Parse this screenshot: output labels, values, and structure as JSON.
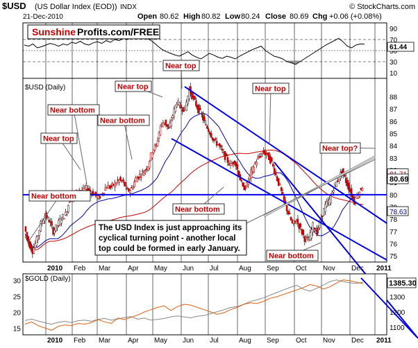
{
  "header": {
    "symbol": "$USD",
    "name": "(US Dollar Index (EOD))",
    "exchange": "INDX",
    "date": "21-Dec-2010",
    "open_label": "Open",
    "open": "80.62",
    "high_label": "High",
    "high": "80.82",
    "low_label": "Low",
    "low": "80.24",
    "close_label": "Close",
    "close": "80.69",
    "chg_label": "Chg",
    "chg": "+0.06 (+0.08%)",
    "credit": "© StockCharts.com"
  },
  "brand": {
    "part1": "Sunshine",
    "part2": "Profits.com/FREE"
  },
  "colors": {
    "price": "#cc0000",
    "ma_long": "#cc0000",
    "ma_short": "#0000aa",
    "trend": "#0000ee",
    "annotation": "#cc0000",
    "gold": "#e06010",
    "silver": "#888888",
    "rsi_shade": "#777777"
  },
  "chart_data": [
    {
      "type": "line",
      "panel": "rsi",
      "y_ticks": [
        "90",
        "70",
        "50",
        "30",
        "10"
      ],
      "ylim": [
        0,
        100
      ],
      "last_value": "61.44",
      "reference_lines": [
        70,
        50,
        30
      ],
      "values": [
        60,
        58,
        62,
        55,
        57,
        60,
        63,
        61,
        58,
        62,
        60,
        65,
        63,
        67,
        62,
        60,
        64,
        66,
        63,
        68,
        65,
        70,
        68,
        72,
        70,
        75,
        73,
        78,
        74,
        70,
        65,
        58,
        52,
        48,
        45,
        42,
        40,
        44,
        48,
        42,
        38,
        35,
        40,
        45,
        42,
        38,
        36,
        40,
        38,
        35,
        40,
        44,
        48,
        52,
        55,
        58,
        50,
        45,
        40,
        38,
        35,
        30,
        28,
        25,
        30,
        35,
        40,
        45,
        50,
        55,
        60,
        64,
        68,
        72,
        66,
        58,
        55,
        60,
        62,
        61.44
      ]
    },
    {
      "type": "candlestick",
      "panel": "price",
      "title": "$USD (Daily)",
      "x_ticks": [
        "2010",
        "Feb",
        "Mar",
        "Apr",
        "May",
        "Jun",
        "Jul",
        "Aug",
        "Sep",
        "Oct",
        "Nov",
        "Dec",
        "2011"
      ],
      "y_ticks": [
        "88",
        "87",
        "86",
        "85",
        "84",
        "83",
        "82",
        "81",
        "80",
        "79",
        "78",
        "77",
        "76",
        "75"
      ],
      "ylim": [
        74.5,
        89.5
      ],
      "close_series": [
        77.4,
        76.1,
        75.4,
        76.3,
        77.6,
        78.3,
        77.9,
        77.0,
        77.5,
        78.1,
        78.4,
        79.6,
        79.8,
        80.4,
        80.2,
        80.5,
        80.3,
        80.0,
        79.7,
        80.2,
        80.7,
        80.6,
        80.9,
        81.2,
        81.0,
        80.3,
        80.5,
        81.3,
        81.6,
        81.9,
        82.4,
        83.6,
        84.0,
        85.6,
        86.0,
        85.3,
        86.5,
        87.6,
        87.1,
        87.0,
        88.6,
        87.8,
        87.1,
        86.5,
        85.6,
        85.1,
        84.4,
        84.1,
        83.5,
        82.9,
        82.4,
        82.8,
        81.7,
        80.5,
        80.8,
        81.8,
        82.6,
        83.1,
        83.5,
        83.2,
        82.6,
        81.6,
        80.6,
        79.4,
        78.5,
        77.6,
        77.9,
        77.2,
        76.4,
        76.3,
        77.5,
        76.9,
        78.1,
        79.1,
        79.5,
        80.6,
        81.2,
        81.9,
        81.1,
        80.3,
        79.4,
        80.1,
        80.69
      ],
      "reference_lines": [
        {
          "label": "81.71",
          "value": 81.71
        },
        {
          "label": "78.63",
          "value": 78.63
        }
      ],
      "last_value": "80.69",
      "horizontal_level": 80.0,
      "annotations": [
        {
          "text": "Near bottom",
          "x_date": "2010-01-06"
        },
        {
          "text": "Near top",
          "x_date": "2010-02-04"
        },
        {
          "text": "Near bottom",
          "x_date": "2010-02-16"
        },
        {
          "text": "Near bottom",
          "x_date": "2010-03-25"
        },
        {
          "text": "Near top",
          "x_date": "2010-05-20"
        },
        {
          "text": "Near top",
          "x_date": "2010-06-07"
        },
        {
          "text": "Near top",
          "x_date": "2010-09-01"
        },
        {
          "text": "Near bottom",
          "x_date": "2010-08-10"
        },
        {
          "text": "Near bottom",
          "x_date": "2010-11-04"
        },
        {
          "text": "Near top?",
          "x_date": "2010-12-20"
        }
      ],
      "commentary": "The USD Index is just approaching its cyclical turning point - another local top could be formed in early January."
    },
    {
      "type": "line",
      "panel": "gold",
      "title": "$GOLD (Daily)",
      "x_ticks": [
        "2010",
        "Feb",
        "Mar",
        "Apr",
        "May",
        "Jun",
        "Jul",
        "Aug",
        "Sep",
        "Oct",
        "Nov",
        "Dec",
        "2011"
      ],
      "y_ticks_left": [
        "30",
        "25",
        "20",
        "15"
      ],
      "y_ticks_right": [
        "1300",
        "1200",
        "1100"
      ],
      "ylim_right": [
        1050,
        1450
      ],
      "ylim_left": [
        13,
        32
      ],
      "last_value": "1385.30",
      "series": [
        {
          "name": "gold",
          "values": [
            1120,
            1135,
            1110,
            1095,
            1080,
            1105,
            1115,
            1110,
            1125,
            1120,
            1130,
            1150,
            1135,
            1125,
            1160,
            1150,
            1165,
            1180,
            1200,
            1215,
            1230,
            1240,
            1210,
            1235,
            1250,
            1245,
            1230,
            1215,
            1200,
            1185,
            1195,
            1215,
            1230,
            1250,
            1260,
            1255,
            1270,
            1290,
            1300,
            1315,
            1330,
            1345,
            1360,
            1380,
            1370,
            1350,
            1365,
            1390,
            1410,
            1405,
            1395,
            1385.3
          ]
        },
        {
          "values": [
            17.5,
            17.9,
            17.3,
            16.8,
            16.3,
            16.9,
            17.2,
            16.8,
            17.4,
            17.6,
            17.2,
            17.8,
            18.1,
            17.6,
            17.9,
            18.4,
            18.7,
            17.9,
            18.2,
            17.6,
            17.8,
            18.1,
            18.6,
            18.9,
            18.6,
            18.3,
            18.8,
            19.0,
            19.6,
            20.2,
            20.8,
            21.5,
            21.8,
            22.5,
            23.4,
            23.9,
            24.5,
            25.4,
            26.2,
            27.0,
            27.8,
            28.4,
            27.2,
            26.6,
            27.5,
            28.5,
            29.6,
            30.1,
            29.6,
            29.2,
            29.0,
            29.4
          ]
        }
      ]
    }
  ]
}
